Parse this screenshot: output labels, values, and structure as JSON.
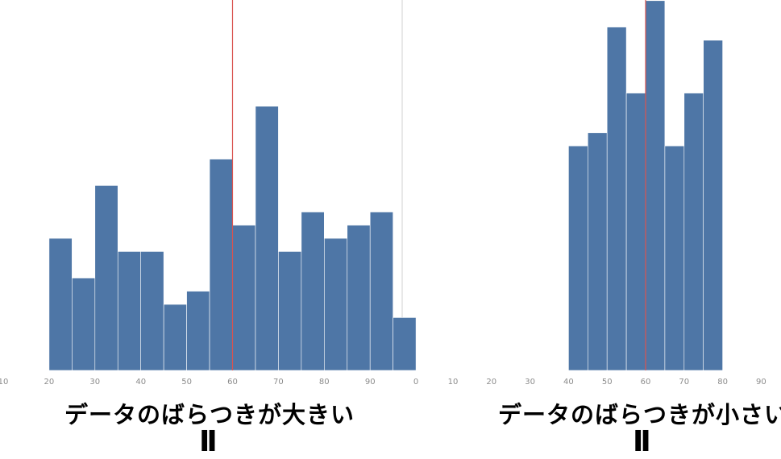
{
  "chart_data": [
    {
      "type": "bar",
      "bin_width": 5,
      "categories": [
        "20",
        "25",
        "30",
        "35",
        "40",
        "45",
        "50",
        "55",
        "60",
        "65",
        "70",
        "75",
        "80",
        "85",
        "90",
        "95"
      ],
      "values": [
        10,
        7,
        14,
        9,
        9,
        5,
        6,
        16,
        11,
        20,
        9,
        12,
        10,
        11,
        12,
        4
      ],
      "x_ticks": [
        "10",
        "20",
        "30",
        "40",
        "50",
        "60",
        "70",
        "80",
        "90",
        "0"
      ],
      "reference_line": 60,
      "bar_color": "#4e76a6",
      "line_color": "#d9534f",
      "caption": "データのばらつきが大きい",
      "caption_mark": "II"
    },
    {
      "type": "bar",
      "bin_width": 5,
      "categories": [
        "40",
        "45",
        "50",
        "55",
        "60",
        "65",
        "70",
        "75"
      ],
      "values": [
        17,
        18,
        26,
        21,
        28,
        17,
        21,
        25
      ],
      "x_ticks": [
        "10",
        "20",
        "30",
        "40",
        "50",
        "60",
        "70",
        "80",
        "90"
      ],
      "reference_line": 60,
      "bar_color": "#4e76a6",
      "line_color": "#d9534f",
      "caption": "データのばらつきが小さい",
      "caption_mark": "II"
    }
  ]
}
